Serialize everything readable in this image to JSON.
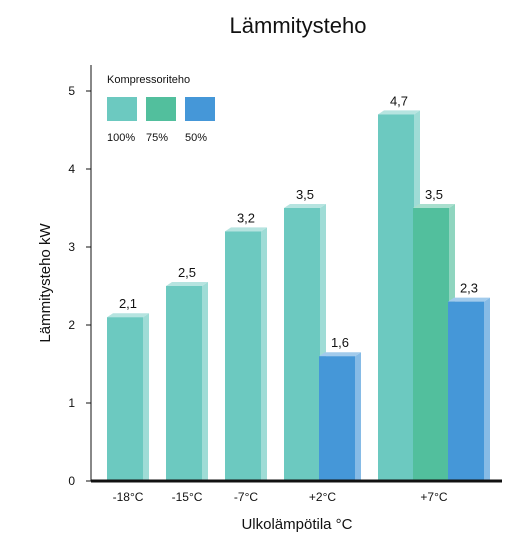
{
  "chart_data": {
    "type": "bar",
    "title": "Lämmitysteho",
    "xlabel": "Ulkolämpötila °C",
    "ylabel": "Lämmitysteho kW",
    "ylim": [
      0,
      5.3
    ],
    "yticks": [
      "0",
      "1",
      "2",
      "3",
      "4",
      "5"
    ],
    "grid": false,
    "legend": {
      "title": "Kompressoriteho",
      "placement": "top-left"
    },
    "categories": [
      "-18°C",
      "-15°C",
      "-7°C",
      "+2°C",
      "+7°C"
    ],
    "series": [
      {
        "name": "100%",
        "color": "#6cc9c0",
        "values": [
          2.1,
          2.5,
          3.2,
          3.5,
          4.7
        ],
        "labels": [
          "2,1",
          "2,5",
          "3,2",
          "3,5",
          "4,7"
        ]
      },
      {
        "name": "75%",
        "color": "#52bf9d",
        "values": [
          null,
          null,
          null,
          null,
          3.5
        ],
        "labels": [
          null,
          null,
          null,
          null,
          "3,5"
        ]
      },
      {
        "name": "50%",
        "color": "#4597d8",
        "values": [
          null,
          null,
          null,
          1.6,
          2.3
        ],
        "labels": [
          null,
          null,
          null,
          "1,6",
          "2,3"
        ]
      }
    ]
  }
}
